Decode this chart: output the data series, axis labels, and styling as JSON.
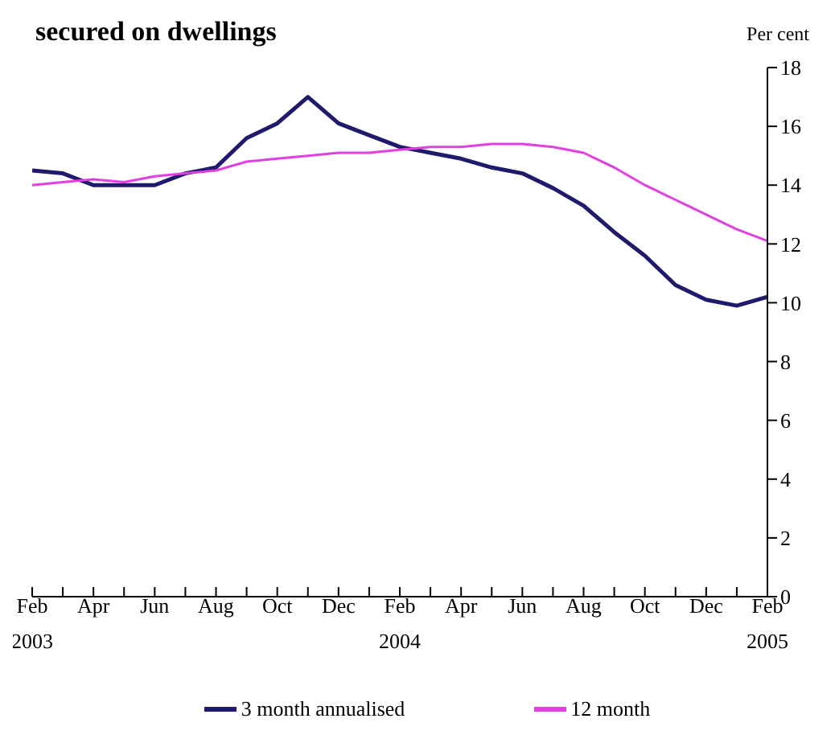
{
  "chart_data": {
    "type": "line",
    "title": "secured on dwellings",
    "ylabel": "Per cent",
    "categories": [
      "Feb 2003",
      null,
      "Apr",
      null,
      "Jun",
      null,
      "Aug",
      null,
      "Oct",
      null,
      "Dec",
      null,
      "Feb 2004",
      null,
      "Apr",
      null,
      "Jun",
      null,
      "Aug",
      null,
      "Oct",
      null,
      "Dec",
      null,
      "Feb 2005"
    ],
    "series": [
      {
        "name": "3 month annualised",
        "color": "#1f1a6b",
        "values": [
          14.5,
          14.4,
          14.0,
          14.0,
          14.0,
          14.4,
          14.6,
          15.6,
          16.1,
          17.0,
          16.1,
          15.7,
          15.3,
          15.1,
          14.9,
          14.6,
          14.4,
          13.9,
          13.3,
          12.4,
          11.6,
          10.6,
          10.1,
          9.9,
          10.2
        ]
      },
      {
        "name": "12 month",
        "color": "#e040e0",
        "values": [
          14.0,
          14.1,
          14.2,
          14.1,
          14.3,
          14.4,
          14.5,
          14.8,
          14.9,
          15.0,
          15.1,
          15.1,
          15.2,
          15.3,
          15.3,
          15.4,
          15.4,
          15.3,
          15.1,
          14.6,
          14.0,
          13.5,
          13.0,
          12.5,
          12.1
        ]
      }
    ],
    "ylim": [
      0,
      18
    ],
    "yticks": [
      0,
      2,
      4,
      6,
      8,
      10,
      12,
      14,
      16,
      18
    ],
    "grid": false,
    "legend": "bottom",
    "marker": "none",
    "line_style": "solid"
  }
}
